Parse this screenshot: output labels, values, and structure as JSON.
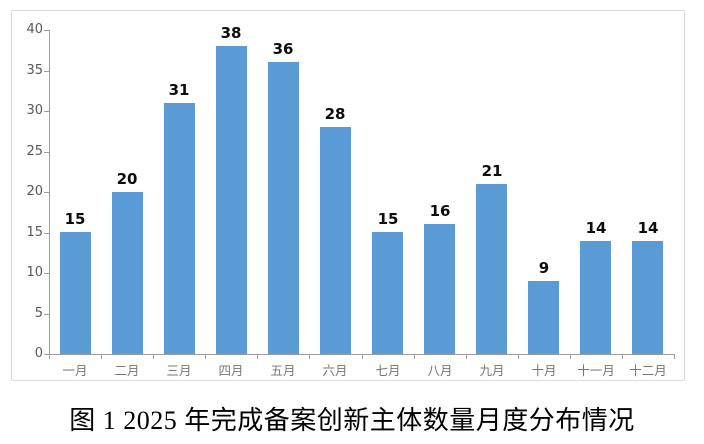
{
  "caption": {
    "text": "图 1 2025 年完成备案创新主体数量月度分布情况"
  },
  "chart_data": {
    "type": "bar",
    "categories": [
      "一月",
      "二月",
      "三月",
      "四月",
      "五月",
      "六月",
      "七月",
      "八月",
      "九月",
      "十月",
      "十一月",
      "十二月"
    ],
    "values": [
      15,
      20,
      31,
      38,
      36,
      28,
      15,
      16,
      21,
      9,
      14,
      14
    ],
    "title": "",
    "xlabel": "",
    "ylabel": "",
    "ylim": [
      0,
      40
    ],
    "yticks": [
      0,
      5,
      10,
      15,
      20,
      25,
      30,
      35,
      40
    ],
    "grid": false,
    "legend": "none",
    "data_labels": true,
    "colors": {
      "bar": "#5B9BD5",
      "axis": "#9d9d9d",
      "y_tick_label": "#595959",
      "x_tick_label": "#767676",
      "value_label": "#0d0d0d",
      "frame_border": "#dcdcdc"
    }
  }
}
